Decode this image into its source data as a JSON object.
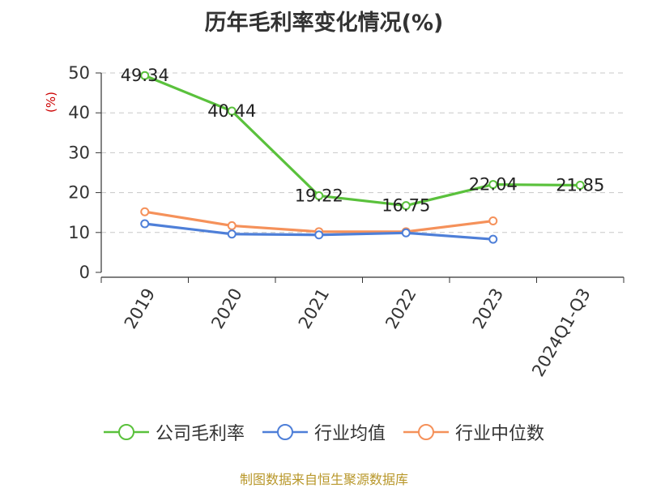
{
  "chart_data": {
    "type": "line",
    "title": "历年毛利率变化情况(%)",
    "ylabel": "(%)",
    "xlabel": "",
    "categories": [
      "2019",
      "2020",
      "2021",
      "2022",
      "2023",
      "2024Q1-Q3"
    ],
    "yticks": [
      "0",
      "10",
      "20",
      "30",
      "40",
      "50"
    ],
    "ylim": [
      0,
      50
    ],
    "grid": true,
    "legend_position": "bottom",
    "series": [
      {
        "name": "公司毛利率",
        "color": "#5ac13c",
        "values": [
          49.34,
          40.44,
          19.22,
          16.75,
          22.04,
          21.85
        ],
        "labels": [
          "49.34",
          "40.44",
          "19.22",
          "16.75",
          "22.04",
          "21.85"
        ]
      },
      {
        "name": "行业均值",
        "color": "#4e7fd8",
        "values": [
          12.2,
          9.6,
          9.4,
          9.9,
          8.3,
          null
        ]
      },
      {
        "name": "行业中位数",
        "color": "#f5915a",
        "values": [
          15.2,
          11.7,
          10.2,
          10.2,
          12.9,
          null
        ]
      }
    ]
  },
  "footer": {
    "source": "制图数据来自恒生聚源数据库"
  }
}
